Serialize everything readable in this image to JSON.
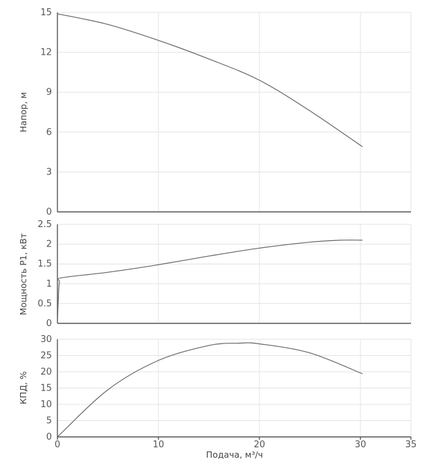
{
  "chart_data": [
    {
      "type": "line",
      "ylabel": "Напор, м",
      "xlim": [
        0,
        35
      ],
      "ylim": [
        0,
        15
      ],
      "yticks": [
        "0",
        "3",
        "6",
        "9",
        "12",
        "15"
      ],
      "grid": true,
      "series": [
        {
          "x": [
            0,
            5,
            10,
            15,
            20,
            25,
            30.2
          ],
          "y": [
            14.9,
            14.1,
            12.9,
            11.5,
            9.9,
            7.6,
            4.9
          ]
        }
      ]
    },
    {
      "type": "line",
      "ylabel": "Мощность Р1, кВт",
      "xlim": [
        0,
        35
      ],
      "ylim": [
        0,
        2.5
      ],
      "yticks": [
        "0",
        "0.5",
        "1",
        "1.5",
        "2",
        "2.5"
      ],
      "grid": true,
      "series": [
        {
          "x": [
            0,
            0.1,
            0.2,
            0.4,
            5,
            10,
            15,
            20,
            25,
            28,
            30.2
          ],
          "y": [
            0,
            0.7,
            1.05,
            1.15,
            1.29,
            1.48,
            1.7,
            1.9,
            2.05,
            2.1,
            2.1
          ]
        }
      ]
    },
    {
      "type": "line",
      "ylabel": "КПД, %",
      "xlabel": "Подача, м³/ч",
      "xlim": [
        0,
        35
      ],
      "ylim": [
        0,
        30
      ],
      "yticks": [
        "0",
        "5",
        "10",
        "15",
        "20",
        "25",
        "30"
      ],
      "xticks": [
        "0",
        "10",
        "20",
        "30",
        "35"
      ],
      "grid": true,
      "series": [
        {
          "x": [
            0,
            5,
            10,
            15,
            18,
            20,
            25,
            30.2
          ],
          "y": [
            0,
            14.5,
            23.5,
            28.1,
            28.8,
            28.6,
            25.8,
            19.4
          ]
        }
      ]
    }
  ]
}
